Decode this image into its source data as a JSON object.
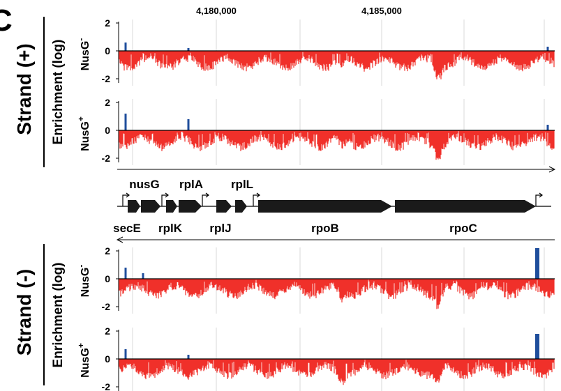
{
  "panel_letter": "C",
  "coordinates": {
    "left": "4,180,000",
    "right": "4,185,000"
  },
  "strands": [
    {
      "label": "Strand (+)",
      "ylabel": "Enrichment (log)"
    },
    {
      "label": "Strand (-)",
      "ylabel": "Enrichment (log)"
    }
  ],
  "track_labels": {
    "minus": "NusG",
    "plus": "NusG",
    "minus_sup": "-",
    "plus_sup": "+"
  },
  "genes_top": [
    "nusG",
    "rplA",
    "rplL"
  ],
  "genes_bottom": [
    "secE",
    "rplK",
    "rplJ",
    "rpoB",
    "rpoC"
  ],
  "colors": {
    "positive": "#1f4e9c",
    "negative": "#f0302a"
  },
  "chart_data": [
    {
      "type": "area",
      "strand": "Strand (+)",
      "track": "NusG-",
      "ylabel": "Enrichment (log)",
      "yticks": [
        "2",
        "0",
        "-2"
      ],
      "ylim": [
        -2.4,
        2.2
      ],
      "x": [
        4178000,
        4190500
      ],
      "typical_enrichment": -1.0,
      "peaks": [
        {
          "x": 4178200,
          "value": 0.6
        },
        {
          "x": 4180000,
          "value": 0.2
        },
        {
          "x": 4190300,
          "value": 0.3
        }
      ]
    },
    {
      "type": "area",
      "strand": "Strand (+)",
      "track": "NusG+",
      "ylabel": "Enrichment (log)",
      "yticks": [
        "2",
        "0",
        "-2"
      ],
      "ylim": [
        -2.4,
        2.2
      ],
      "x": [
        4178000,
        4190500
      ],
      "typical_enrichment": -1.0,
      "peaks": [
        {
          "x": 4178200,
          "value": 1.2
        },
        {
          "x": 4180000,
          "value": 0.8
        },
        {
          "x": 4190300,
          "value": 0.4
        }
      ]
    },
    {
      "type": "area",
      "strand": "Strand (-)",
      "track": "NusG-",
      "ylabel": "Enrichment (log)",
      "yticks": [
        "2",
        "0",
        "-2"
      ],
      "ylim": [
        -2.4,
        2.2
      ],
      "x": [
        4178000,
        4190500
      ],
      "typical_enrichment": -1.0,
      "peaks": [
        {
          "x": 4178200,
          "value": 0.8
        },
        {
          "x": 4178700,
          "value": 0.4
        },
        {
          "x": 4190000,
          "value": 2.2
        }
      ]
    },
    {
      "type": "area",
      "strand": "Strand (-)",
      "track": "NusG+",
      "ylabel": "Enrichment (log)",
      "yticks": [
        "2",
        "0",
        "-2"
      ],
      "ylim": [
        -2.4,
        2.2
      ],
      "x": [
        4178000,
        4190500
      ],
      "typical_enrichment": -1.0,
      "peaks": [
        {
          "x": 4178200,
          "value": 0.7
        },
        {
          "x": 4180000,
          "value": 0.3
        },
        {
          "x": 4190000,
          "value": 1.8
        }
      ]
    }
  ]
}
